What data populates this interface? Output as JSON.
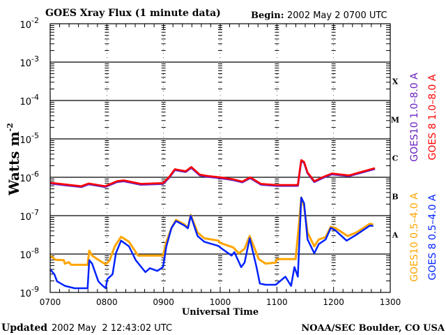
{
  "chart_data": {
    "type": "line",
    "title": "GOES Xray Flux (1 minute data)",
    "begin_label": "Begin:",
    "begin_value": "2002 May 2 0700 UTC",
    "xlabel": "Universal Time",
    "ylabel": "Watts m",
    "ylabel_sup": "-2",
    "y_scale": "log",
    "ylim_log10": [
      -9,
      -2
    ],
    "xlim_hours": [
      7,
      13
    ],
    "x_ticks": [
      "0700",
      "0800",
      "0900",
      "1000",
      "1100",
      "1200",
      "1300"
    ],
    "y_ticks": [
      {
        "base": "10",
        "exp": "-2",
        "log": -2
      },
      {
        "base": "10",
        "exp": "-3",
        "log": -3
      },
      {
        "base": "10",
        "exp": "-4",
        "log": -4
      },
      {
        "base": "10",
        "exp": "-5",
        "log": -5
      },
      {
        "base": "10",
        "exp": "-6",
        "log": -6
      },
      {
        "base": "10",
        "exp": "-7",
        "log": -7
      },
      {
        "base": "10",
        "exp": "-8",
        "log": -8
      },
      {
        "base": "10",
        "exp": "-9",
        "log": -9
      }
    ],
    "flare_classes": [
      {
        "label": "X",
        "log": -3.5
      },
      {
        "label": "M",
        "log": -4.5
      },
      {
        "label": "C",
        "log": -5.5
      },
      {
        "label": "B",
        "log": -6.5
      },
      {
        "label": "A",
        "log": -7.5
      }
    ],
    "grid": "horizontal at each decade",
    "legend_placement": "right (vertical text)",
    "series": [
      {
        "name": "GOES10 1.0–8.0 A",
        "color": "#6a1fc0",
        "data": [
          [
            7.0,
            -6.16
          ],
          [
            7.3,
            -6.21
          ],
          [
            7.55,
            -6.25
          ],
          [
            7.68,
            -6.18
          ],
          [
            7.97,
            -6.25
          ],
          [
            8.18,
            -6.12
          ],
          [
            8.3,
            -6.1
          ],
          [
            8.6,
            -6.19
          ],
          [
            8.99,
            -6.17
          ],
          [
            9.1,
            -6.01
          ],
          [
            9.2,
            -5.81
          ],
          [
            9.39,
            -5.86
          ],
          [
            9.49,
            -5.75
          ],
          [
            9.64,
            -5.95
          ],
          [
            9.8,
            -5.99
          ],
          [
            10.0,
            -6.02
          ],
          [
            10.23,
            -6.07
          ],
          [
            10.39,
            -6.13
          ],
          [
            10.53,
            -6.02
          ],
          [
            10.72,
            -6.19
          ],
          [
            11.0,
            -6.22
          ],
          [
            11.37,
            -6.22
          ],
          [
            11.41,
            -5.77
          ],
          [
            11.43,
            -5.57
          ],
          [
            11.48,
            -5.62
          ],
          [
            11.54,
            -5.89
          ],
          [
            11.66,
            -6.12
          ],
          [
            11.82,
            -6.01
          ],
          [
            11.97,
            -5.92
          ],
          [
            12.27,
            -5.97
          ],
          [
            12.68,
            -5.8
          ],
          [
            12.73,
            -5.78
          ]
        ]
      },
      {
        "name": "GOES 8 1.0–8.0 A",
        "color": "#ff0000",
        "data": [
          [
            7.0,
            -6.14
          ],
          [
            7.3,
            -6.19
          ],
          [
            7.55,
            -6.23
          ],
          [
            7.68,
            -6.16
          ],
          [
            7.97,
            -6.23
          ],
          [
            8.18,
            -6.1
          ],
          [
            8.3,
            -6.08
          ],
          [
            8.6,
            -6.17
          ],
          [
            8.99,
            -6.15
          ],
          [
            9.1,
            -5.99
          ],
          [
            9.2,
            -5.79
          ],
          [
            9.39,
            -5.84
          ],
          [
            9.49,
            -5.73
          ],
          [
            9.64,
            -5.93
          ],
          [
            9.8,
            -5.97
          ],
          [
            10.0,
            -6.0
          ],
          [
            10.23,
            -6.05
          ],
          [
            10.39,
            -6.11
          ],
          [
            10.53,
            -6.0
          ],
          [
            10.72,
            -6.17
          ],
          [
            11.0,
            -6.2
          ],
          [
            11.37,
            -6.2
          ],
          [
            11.41,
            -5.75
          ],
          [
            11.43,
            -5.55
          ],
          [
            11.48,
            -5.6
          ],
          [
            11.54,
            -5.87
          ],
          [
            11.66,
            -6.1
          ],
          [
            11.82,
            -5.99
          ],
          [
            11.97,
            -5.9
          ],
          [
            12.27,
            -5.95
          ],
          [
            12.68,
            -5.78
          ],
          [
            12.73,
            -5.76
          ]
        ]
      },
      {
        "name": "GOES10 0.5–4.0 A",
        "color": "#ffa500",
        "data": [
          [
            7.0,
            -8.04
          ],
          [
            7.1,
            -8.15
          ],
          [
            7.24,
            -8.16
          ],
          [
            7.26,
            -8.25
          ],
          [
            7.33,
            -8.21
          ],
          [
            7.37,
            -8.28
          ],
          [
            7.66,
            -8.28
          ],
          [
            7.69,
            -7.91
          ],
          [
            7.74,
            -8.04
          ],
          [
            7.89,
            -8.19
          ],
          [
            7.98,
            -8.27
          ],
          [
            8.05,
            -8.16
          ],
          [
            8.14,
            -7.8
          ],
          [
            8.25,
            -7.55
          ],
          [
            8.39,
            -7.68
          ],
          [
            8.55,
            -8.04
          ],
          [
            8.99,
            -8.04
          ],
          [
            9.05,
            -7.68
          ],
          [
            9.14,
            -7.32
          ],
          [
            9.22,
            -7.11
          ],
          [
            9.37,
            -7.23
          ],
          [
            9.43,
            -7.32
          ],
          [
            9.48,
            -6.98
          ],
          [
            9.6,
            -7.44
          ],
          [
            9.72,
            -7.59
          ],
          [
            9.97,
            -7.65
          ],
          [
            10.0,
            -7.71
          ],
          [
            10.23,
            -7.83
          ],
          [
            10.33,
            -7.98
          ],
          [
            10.43,
            -7.86
          ],
          [
            10.52,
            -7.53
          ],
          [
            10.68,
            -8.13
          ],
          [
            10.8,
            -8.25
          ],
          [
            10.98,
            -8.22
          ],
          [
            11.0,
            -8.13
          ],
          [
            11.33,
            -8.13
          ],
          [
            11.39,
            -7.2
          ],
          [
            11.43,
            -6.53
          ],
          [
            11.48,
            -6.77
          ],
          [
            11.54,
            -7.44
          ],
          [
            11.66,
            -7.8
          ],
          [
            11.74,
            -7.62
          ],
          [
            11.86,
            -7.56
          ],
          [
            11.95,
            -7.29
          ],
          [
            12.03,
            -7.32
          ],
          [
            12.25,
            -7.53
          ],
          [
            12.4,
            -7.44
          ],
          [
            12.64,
            -7.21
          ],
          [
            12.7,
            -7.23
          ]
        ]
      },
      {
        "name": "GOES 8 0.5–4.0 A",
        "color": "#0022ff",
        "data": [
          [
            7.0,
            -8.4
          ],
          [
            7.075,
            -8.53
          ],
          [
            7.12,
            -8.71
          ],
          [
            7.26,
            -8.83
          ],
          [
            7.43,
            -8.89
          ],
          [
            7.66,
            -8.89
          ],
          [
            7.69,
            -8.16
          ],
          [
            7.74,
            -8.25
          ],
          [
            7.85,
            -8.71
          ],
          [
            7.93,
            -8.83
          ],
          [
            7.98,
            -8.89
          ],
          [
            8.01,
            -8.65
          ],
          [
            8.1,
            -8.53
          ],
          [
            8.16,
            -7.98
          ],
          [
            8.25,
            -7.65
          ],
          [
            8.39,
            -7.8
          ],
          [
            8.51,
            -8.16
          ],
          [
            8.68,
            -8.47
          ],
          [
            8.76,
            -8.37
          ],
          [
            8.89,
            -8.44
          ],
          [
            8.99,
            -8.34
          ],
          [
            9.05,
            -7.8
          ],
          [
            9.14,
            -7.32
          ],
          [
            9.22,
            -7.14
          ],
          [
            9.37,
            -7.26
          ],
          [
            9.43,
            -7.33
          ],
          [
            9.48,
            -7.0
          ],
          [
            9.6,
            -7.53
          ],
          [
            9.72,
            -7.68
          ],
          [
            9.97,
            -7.79
          ],
          [
            10.0,
            -7.83
          ],
          [
            10.2,
            -8.04
          ],
          [
            10.25,
            -7.95
          ],
          [
            10.37,
            -8.34
          ],
          [
            10.43,
            -8.22
          ],
          [
            10.52,
            -7.59
          ],
          [
            10.64,
            -8.34
          ],
          [
            10.7,
            -8.77
          ],
          [
            10.8,
            -8.8
          ],
          [
            10.98,
            -8.8
          ],
          [
            11.15,
            -8.59
          ],
          [
            11.25,
            -8.83
          ],
          [
            11.31,
            -8.34
          ],
          [
            11.37,
            -8.59
          ],
          [
            11.43,
            -6.53
          ],
          [
            11.48,
            -6.68
          ],
          [
            11.54,
            -7.62
          ],
          [
            11.66,
            -7.98
          ],
          [
            11.74,
            -7.74
          ],
          [
            11.86,
            -7.62
          ],
          [
            11.95,
            -7.32
          ],
          [
            12.03,
            -7.38
          ],
          [
            12.23,
            -7.65
          ],
          [
            12.4,
            -7.5
          ],
          [
            12.64,
            -7.26
          ],
          [
            12.7,
            -7.27
          ]
        ]
      }
    ]
  },
  "footer": {
    "updated_label": "Updated",
    "updated_value": "2002 May  2 12:43:02 UTC",
    "credit": "NOAA/SEC Boulder, CO USA"
  }
}
